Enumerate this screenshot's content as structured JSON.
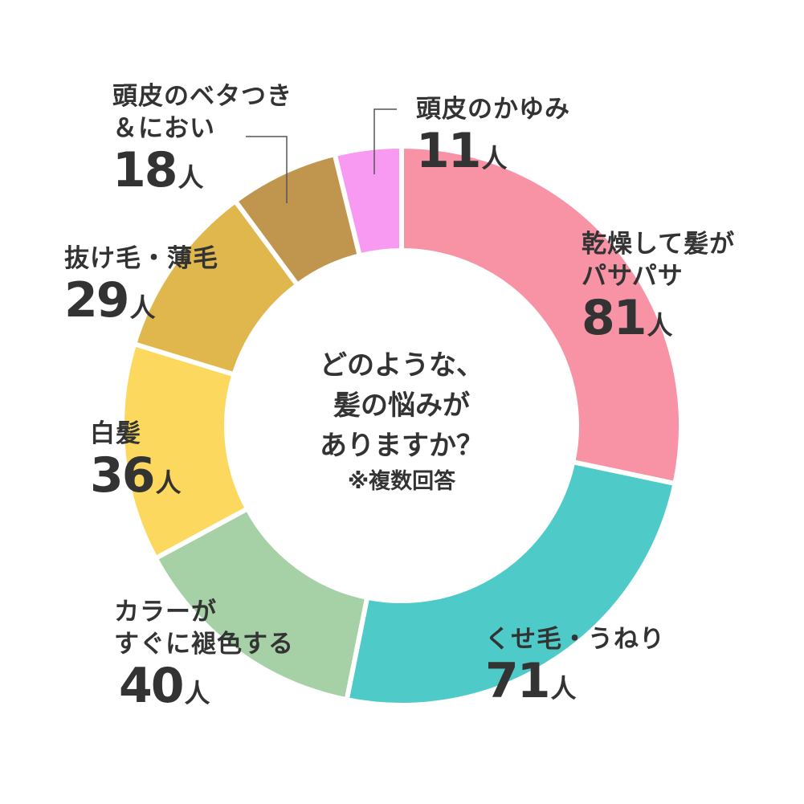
{
  "chart_data": {
    "type": "pie",
    "style": "donut",
    "unit": "人",
    "title_lines": [
      "どのような、",
      "髪の悩みが",
      "ありますか？"
    ],
    "note": "※複数回答",
    "slices": [
      {
        "name_lines": [
          "乾燥して髪が",
          "パサパサ"
        ],
        "value": 81,
        "value_text": "81",
        "color": "#f892a5"
      },
      {
        "name_lines": [
          "くせ毛・うねり"
        ],
        "value": 71,
        "value_text": "71",
        "color": "#4ecbc8"
      },
      {
        "name_lines": [
          "カラーが",
          "すぐに褪色する"
        ],
        "value": 40,
        "value_text": "40",
        "color": "#a6d0a6"
      },
      {
        "name_lines": [
          "白髪"
        ],
        "value": 36,
        "value_text": "36",
        "color": "#fcd95e"
      },
      {
        "name_lines": [
          "抜け毛・薄毛"
        ],
        "value": 29,
        "value_text": "29",
        "color": "#e0b74d"
      },
      {
        "name_lines": [
          "頭皮のベタつき",
          "＆におい"
        ],
        "value": 18,
        "value_text": "18",
        "color": "#c0954e"
      },
      {
        "name_lines": [
          "頭皮のかゆみ"
        ],
        "value": 11,
        "value_text": "11",
        "color": "#f89af1"
      }
    ]
  }
}
